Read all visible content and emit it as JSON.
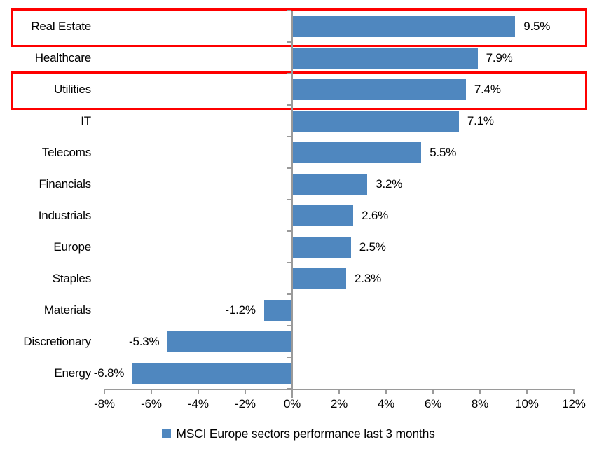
{
  "chart_data": {
    "type": "bar",
    "orientation": "horizontal",
    "title": "",
    "categories": [
      "Real Estate",
      "Healthcare",
      "Utilities",
      "IT",
      "Telecoms",
      "Financials",
      "Industrials",
      "Europe",
      "Staples",
      "Materials",
      "Discretionary",
      "Energy"
    ],
    "values": [
      9.5,
      7.9,
      7.4,
      7.1,
      5.5,
      3.2,
      2.6,
      2.5,
      2.3,
      -1.2,
      -5.3,
      -6.8
    ],
    "value_labels": [
      "9.5%",
      "7.9%",
      "7.4%",
      "7.1%",
      "5.5%",
      "3.2%",
      "2.6%",
      "2.5%",
      "2.3%",
      "-1.2%",
      "-5.3%",
      "-6.8%"
    ],
    "x_tick_values": [
      -8,
      -6,
      -4,
      -2,
      0,
      2,
      4,
      6,
      8,
      10,
      12
    ],
    "x_tick_labels": [
      "-8%",
      "-6%",
      "-4%",
      "-2%",
      "0%",
      "2%",
      "4%",
      "6%",
      "8%",
      "10%",
      "12%"
    ],
    "xlim": [
      -8,
      12
    ],
    "grid": false,
    "bar_color": "#4f87bf",
    "axis_color": "#9a9a9a",
    "highlight_color": "#fe0000",
    "highlighted_categories": [
      "Real Estate",
      "Utilities"
    ],
    "legend_position": "bottom-center",
    "legend": [
      {
        "label": "MSCI Europe sectors performance last 3 months",
        "color": "#4f87bf"
      }
    ]
  }
}
